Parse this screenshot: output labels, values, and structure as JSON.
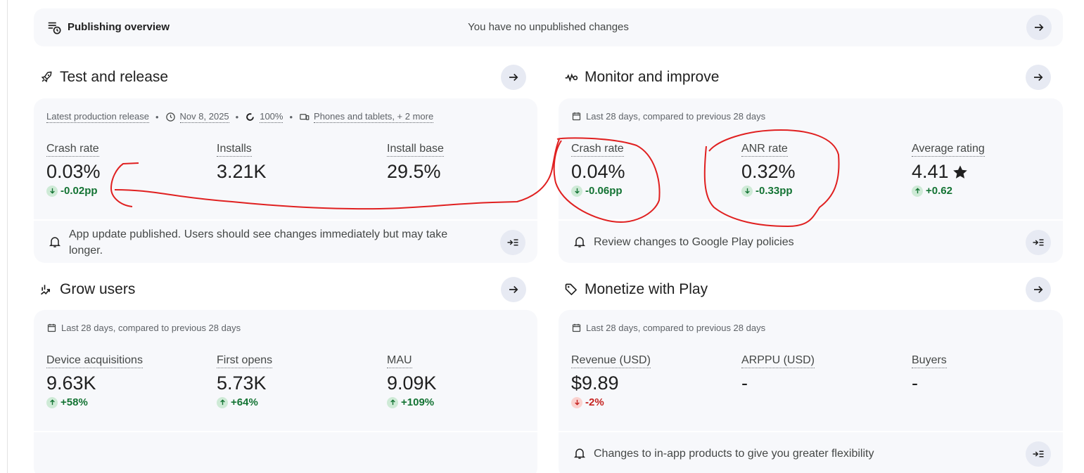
{
  "publishing": {
    "title": "Publishing overview",
    "status": "You have no unpublished changes"
  },
  "test_release": {
    "title": "Test and release",
    "meta": {
      "release_label": "Latest production release",
      "date": "Nov 8, 2025",
      "rollout": "100%",
      "devices": "Phones and tablets, + 2 more"
    },
    "metrics": [
      {
        "label": "Crash rate",
        "value": "0.03%",
        "delta": "-0.02pp",
        "direction": "down"
      },
      {
        "label": "Installs",
        "value": "3.21K"
      },
      {
        "label": "Install base",
        "value": "29.5%"
      }
    ],
    "footer": "App update published. Users should see changes immediately but may take longer."
  },
  "monitor": {
    "title": "Monitor and improve",
    "period": "Last 28 days, compared to previous 28 days",
    "metrics": [
      {
        "label": "Crash rate",
        "value": "0.04%",
        "delta": "-0.06pp",
        "direction": "down"
      },
      {
        "label": "ANR rate",
        "value": "0.32%",
        "delta": "-0.33pp",
        "direction": "down"
      },
      {
        "label": "Average rating",
        "value": "4.41",
        "delta": "+0.62",
        "direction": "up"
      }
    ],
    "footer": "Review changes to Google Play policies"
  },
  "grow": {
    "title": "Grow users",
    "period": "Last 28 days, compared to previous 28 days",
    "metrics": [
      {
        "label": "Device acquisitions",
        "value": "9.63K",
        "delta": "+58%",
        "direction": "up"
      },
      {
        "label": "First opens",
        "value": "5.73K",
        "delta": "+64%",
        "direction": "up"
      },
      {
        "label": "MAU",
        "value": "9.09K",
        "delta": "+109%",
        "direction": "up"
      }
    ]
  },
  "monetize": {
    "title": "Monetize with Play",
    "period": "Last 28 days, compared to previous 28 days",
    "metrics": [
      {
        "label": "Revenue (USD)",
        "value": "$9.89",
        "delta": "-2%",
        "direction": "down"
      },
      {
        "label": "ARPPU (USD)",
        "value": "-"
      },
      {
        "label": "Buyers",
        "value": "-"
      }
    ],
    "footer": "Changes to in-app products to give you greater flexibility"
  },
  "colors": {
    "card_bg": "#f7f8fb",
    "button_bg": "#e7eaf3",
    "positive": "#137333",
    "negative": "#c5221f",
    "annotation": "#e02020"
  },
  "icons": {
    "publishing": "publishing-overview-icon",
    "test_release": "rocket-icon",
    "monitor": "vitals-icon",
    "grow": "grow-users-icon",
    "monetize": "tag-icon",
    "arrow": "arrow-forward-icon",
    "calendar": "calendar-icon",
    "bell": "bell-icon",
    "expand": "expand-panel-icon",
    "star": "star-icon"
  }
}
